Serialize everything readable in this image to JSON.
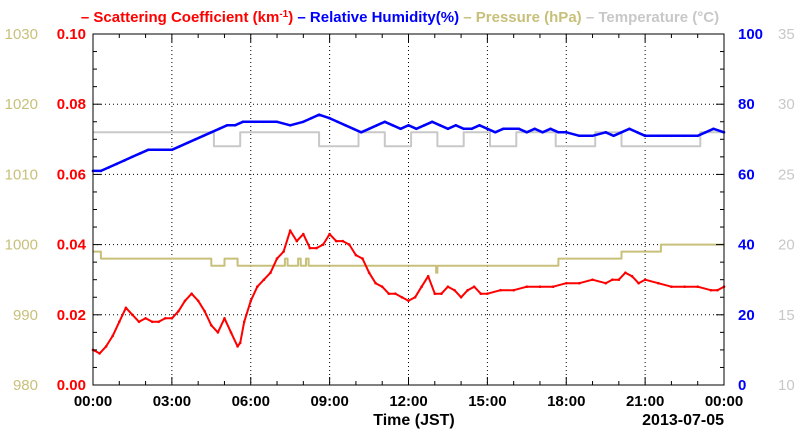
{
  "chart_data": {
    "type": "line",
    "xlabel": "Time (JST)",
    "date_label": "2013-07-05",
    "x_ticks": [
      "00:00",
      "03:00",
      "06:00",
      "09:00",
      "12:00",
      "15:00",
      "18:00",
      "21:00",
      "00:00"
    ],
    "xlim_hours": [
      0,
      24
    ],
    "grid": true,
    "legend_position": "top",
    "legend": [
      {
        "key": "scattering",
        "prefix": "– ",
        "text": "Scattering Coefficient (km",
        "sup": "-1",
        "suffix": ")",
        "color": "#ff0000"
      },
      {
        "key": "humidity",
        "prefix": " – ",
        "text": "Relative Humidity(%)",
        "color": "#0000ff"
      },
      {
        "key": "pressure",
        "prefix": " – ",
        "text": "Pressure (hPa)",
        "color": "#c8c07a"
      },
      {
        "key": "temperature",
        "prefix": " – ",
        "text": "Temperature (°C)",
        "color": "#c8c8c8"
      }
    ],
    "axes": {
      "pressure": {
        "side": "left-outer",
        "ylim": [
          980,
          1030
        ],
        "ticks": [
          "980",
          "990",
          "1000",
          "1010",
          "1020",
          "1030"
        ],
        "color": "#c8c07a"
      },
      "scattering": {
        "side": "left-inner",
        "ylim": [
          0,
          0.1
        ],
        "ticks": [
          "0.00",
          "0.02",
          "0.04",
          "0.06",
          "0.08",
          "0.10"
        ],
        "color": "#ff0000"
      },
      "humidity": {
        "side": "right-inner",
        "ylim": [
          0,
          100
        ],
        "ticks": [
          "0",
          "20",
          "40",
          "60",
          "80",
          "100"
        ],
        "color": "#0000ff"
      },
      "temperature": {
        "side": "right-outer",
        "ylim": [
          10,
          35
        ],
        "ticks": [
          "10",
          "15",
          "20",
          "25",
          "30",
          "35"
        ],
        "color": "#c8c8c8"
      }
    },
    "series": [
      {
        "key": "scattering",
        "name": "Scattering Coefficient (km-1)",
        "color": "#ff0000",
        "x": [
          0,
          0.25,
          0.5,
          0.75,
          1.0,
          1.25,
          1.5,
          1.75,
          2.0,
          2.25,
          2.5,
          2.75,
          3.0,
          3.25,
          3.5,
          3.75,
          4.0,
          4.25,
          4.5,
          4.75,
          5.0,
          5.25,
          5.5,
          5.6,
          5.75,
          6.0,
          6.25,
          6.5,
          6.75,
          7.0,
          7.25,
          7.5,
          7.75,
          8.0,
          8.25,
          8.5,
          8.75,
          9.0,
          9.25,
          9.5,
          9.75,
          10.0,
          10.25,
          10.5,
          10.75,
          11.0,
          11.25,
          11.5,
          11.75,
          12.0,
          12.25,
          12.5,
          12.75,
          13.0,
          13.25,
          13.5,
          13.75,
          14.0,
          14.25,
          14.5,
          14.75,
          15.0,
          15.5,
          16.0,
          16.5,
          17.0,
          17.5,
          18.0,
          18.5,
          19.0,
          19.5,
          19.75,
          20.0,
          20.25,
          20.5,
          20.75,
          21.0,
          21.5,
          22.0,
          22.5,
          23.0,
          23.5,
          23.75,
          24.0
        ],
        "values": [
          0.01,
          0.009,
          0.011,
          0.014,
          0.018,
          0.022,
          0.02,
          0.018,
          0.019,
          0.018,
          0.018,
          0.019,
          0.019,
          0.021,
          0.024,
          0.026,
          0.024,
          0.021,
          0.017,
          0.015,
          0.019,
          0.015,
          0.011,
          0.012,
          0.018,
          0.024,
          0.028,
          0.03,
          0.032,
          0.036,
          0.038,
          0.044,
          0.041,
          0.043,
          0.039,
          0.039,
          0.04,
          0.043,
          0.041,
          0.041,
          0.04,
          0.037,
          0.036,
          0.032,
          0.029,
          0.028,
          0.026,
          0.026,
          0.025,
          0.024,
          0.025,
          0.028,
          0.031,
          0.026,
          0.026,
          0.028,
          0.027,
          0.025,
          0.027,
          0.028,
          0.026,
          0.026,
          0.027,
          0.027,
          0.028,
          0.028,
          0.028,
          0.029,
          0.029,
          0.03,
          0.029,
          0.03,
          0.03,
          0.032,
          0.031,
          0.029,
          0.03,
          0.029,
          0.028,
          0.028,
          0.028,
          0.027,
          0.027,
          0.028
        ]
      },
      {
        "key": "humidity",
        "name": "Relative Humidity(%)",
        "color": "#0000ff",
        "x": [
          0,
          0.3,
          0.6,
          0.9,
          1.2,
          1.5,
          1.8,
          2.1,
          2.5,
          3.0,
          3.3,
          3.6,
          3.9,
          4.2,
          4.5,
          4.8,
          5.1,
          5.4,
          5.7,
          6.0,
          6.5,
          7.0,
          7.5,
          8.0,
          8.3,
          8.6,
          9.0,
          9.3,
          9.6,
          9.9,
          10.2,
          10.5,
          10.8,
          11.1,
          11.4,
          11.7,
          12.0,
          12.3,
          12.6,
          12.9,
          13.2,
          13.5,
          13.8,
          14.1,
          14.4,
          14.7,
          15.0,
          15.3,
          15.6,
          15.9,
          16.2,
          16.5,
          16.8,
          17.1,
          17.4,
          17.7,
          18.0,
          18.5,
          19.0,
          19.5,
          19.8,
          20.1,
          20.4,
          20.7,
          21.0,
          21.5,
          22.0,
          22.5,
          23.0,
          23.3,
          23.6,
          24.0
        ],
        "values": [
          61,
          61,
          62,
          63,
          64,
          65,
          66,
          67,
          67,
          67,
          68,
          69,
          70,
          71,
          72,
          73,
          74,
          74,
          75,
          75,
          75,
          75,
          74,
          75,
          76,
          77,
          76,
          75,
          74,
          73,
          72,
          73,
          74,
          75,
          74,
          73,
          74,
          73,
          74,
          75,
          74,
          73,
          74,
          73,
          73,
          74,
          73,
          72,
          73,
          73,
          73,
          72,
          73,
          72,
          73,
          72,
          72,
          71,
          71,
          72,
          71,
          72,
          73,
          72,
          71,
          71,
          71,
          71,
          71,
          72,
          73,
          72
        ]
      },
      {
        "key": "pressure",
        "name": "Pressure (hPa)",
        "color": "#c8c07a",
        "x": [
          0,
          0.2,
          0.3,
          2.3,
          2.5,
          3.0,
          3.5,
          4.0,
          4.5,
          5.0,
          5.5,
          6.0,
          7.0,
          7.2,
          7.3,
          7.4,
          7.7,
          7.8,
          7.9,
          8.0,
          8.1,
          8.2,
          8.3,
          8.4,
          9.0,
          11.0,
          12.5,
          13.0,
          13.05,
          13.1,
          13.3,
          15.0,
          17.0,
          17.6,
          17.7,
          19.0,
          20.0,
          20.1,
          21.0,
          21.5,
          21.6,
          23.0,
          24.0
        ],
        "values": [
          999,
          999,
          998,
          998,
          998,
          998,
          998,
          998,
          997,
          998,
          997,
          997,
          997,
          997,
          998,
          997,
          997,
          998,
          997,
          997,
          998,
          997,
          997,
          997,
          997,
          997,
          997,
          997,
          996,
          997,
          997,
          997,
          997,
          997,
          998,
          998,
          998,
          999,
          999,
          999,
          1000,
          1000,
          1000
        ]
      },
      {
        "key": "temperature",
        "name": "Temperature (°C)",
        "color": "#c8c8c8",
        "x": [
          0,
          4.5,
          4.6,
          5.5,
          5.6,
          8.5,
          8.6,
          10.0,
          10.1,
          11.0,
          11.1,
          12.0,
          12.1,
          13.0,
          13.1,
          14.0,
          14.1,
          15.0,
          15.1,
          16.0,
          16.1,
          17.5,
          17.6,
          19.0,
          19.1,
          20.0,
          20.1,
          23.0,
          23.1,
          24.0
        ],
        "values": [
          28,
          28,
          27,
          27,
          28,
          28,
          27,
          27,
          28,
          28,
          27,
          27,
          28,
          28,
          27,
          27,
          28,
          28,
          27,
          27,
          28,
          28,
          27,
          27,
          28,
          28,
          27,
          27,
          28,
          28
        ]
      }
    ]
  }
}
